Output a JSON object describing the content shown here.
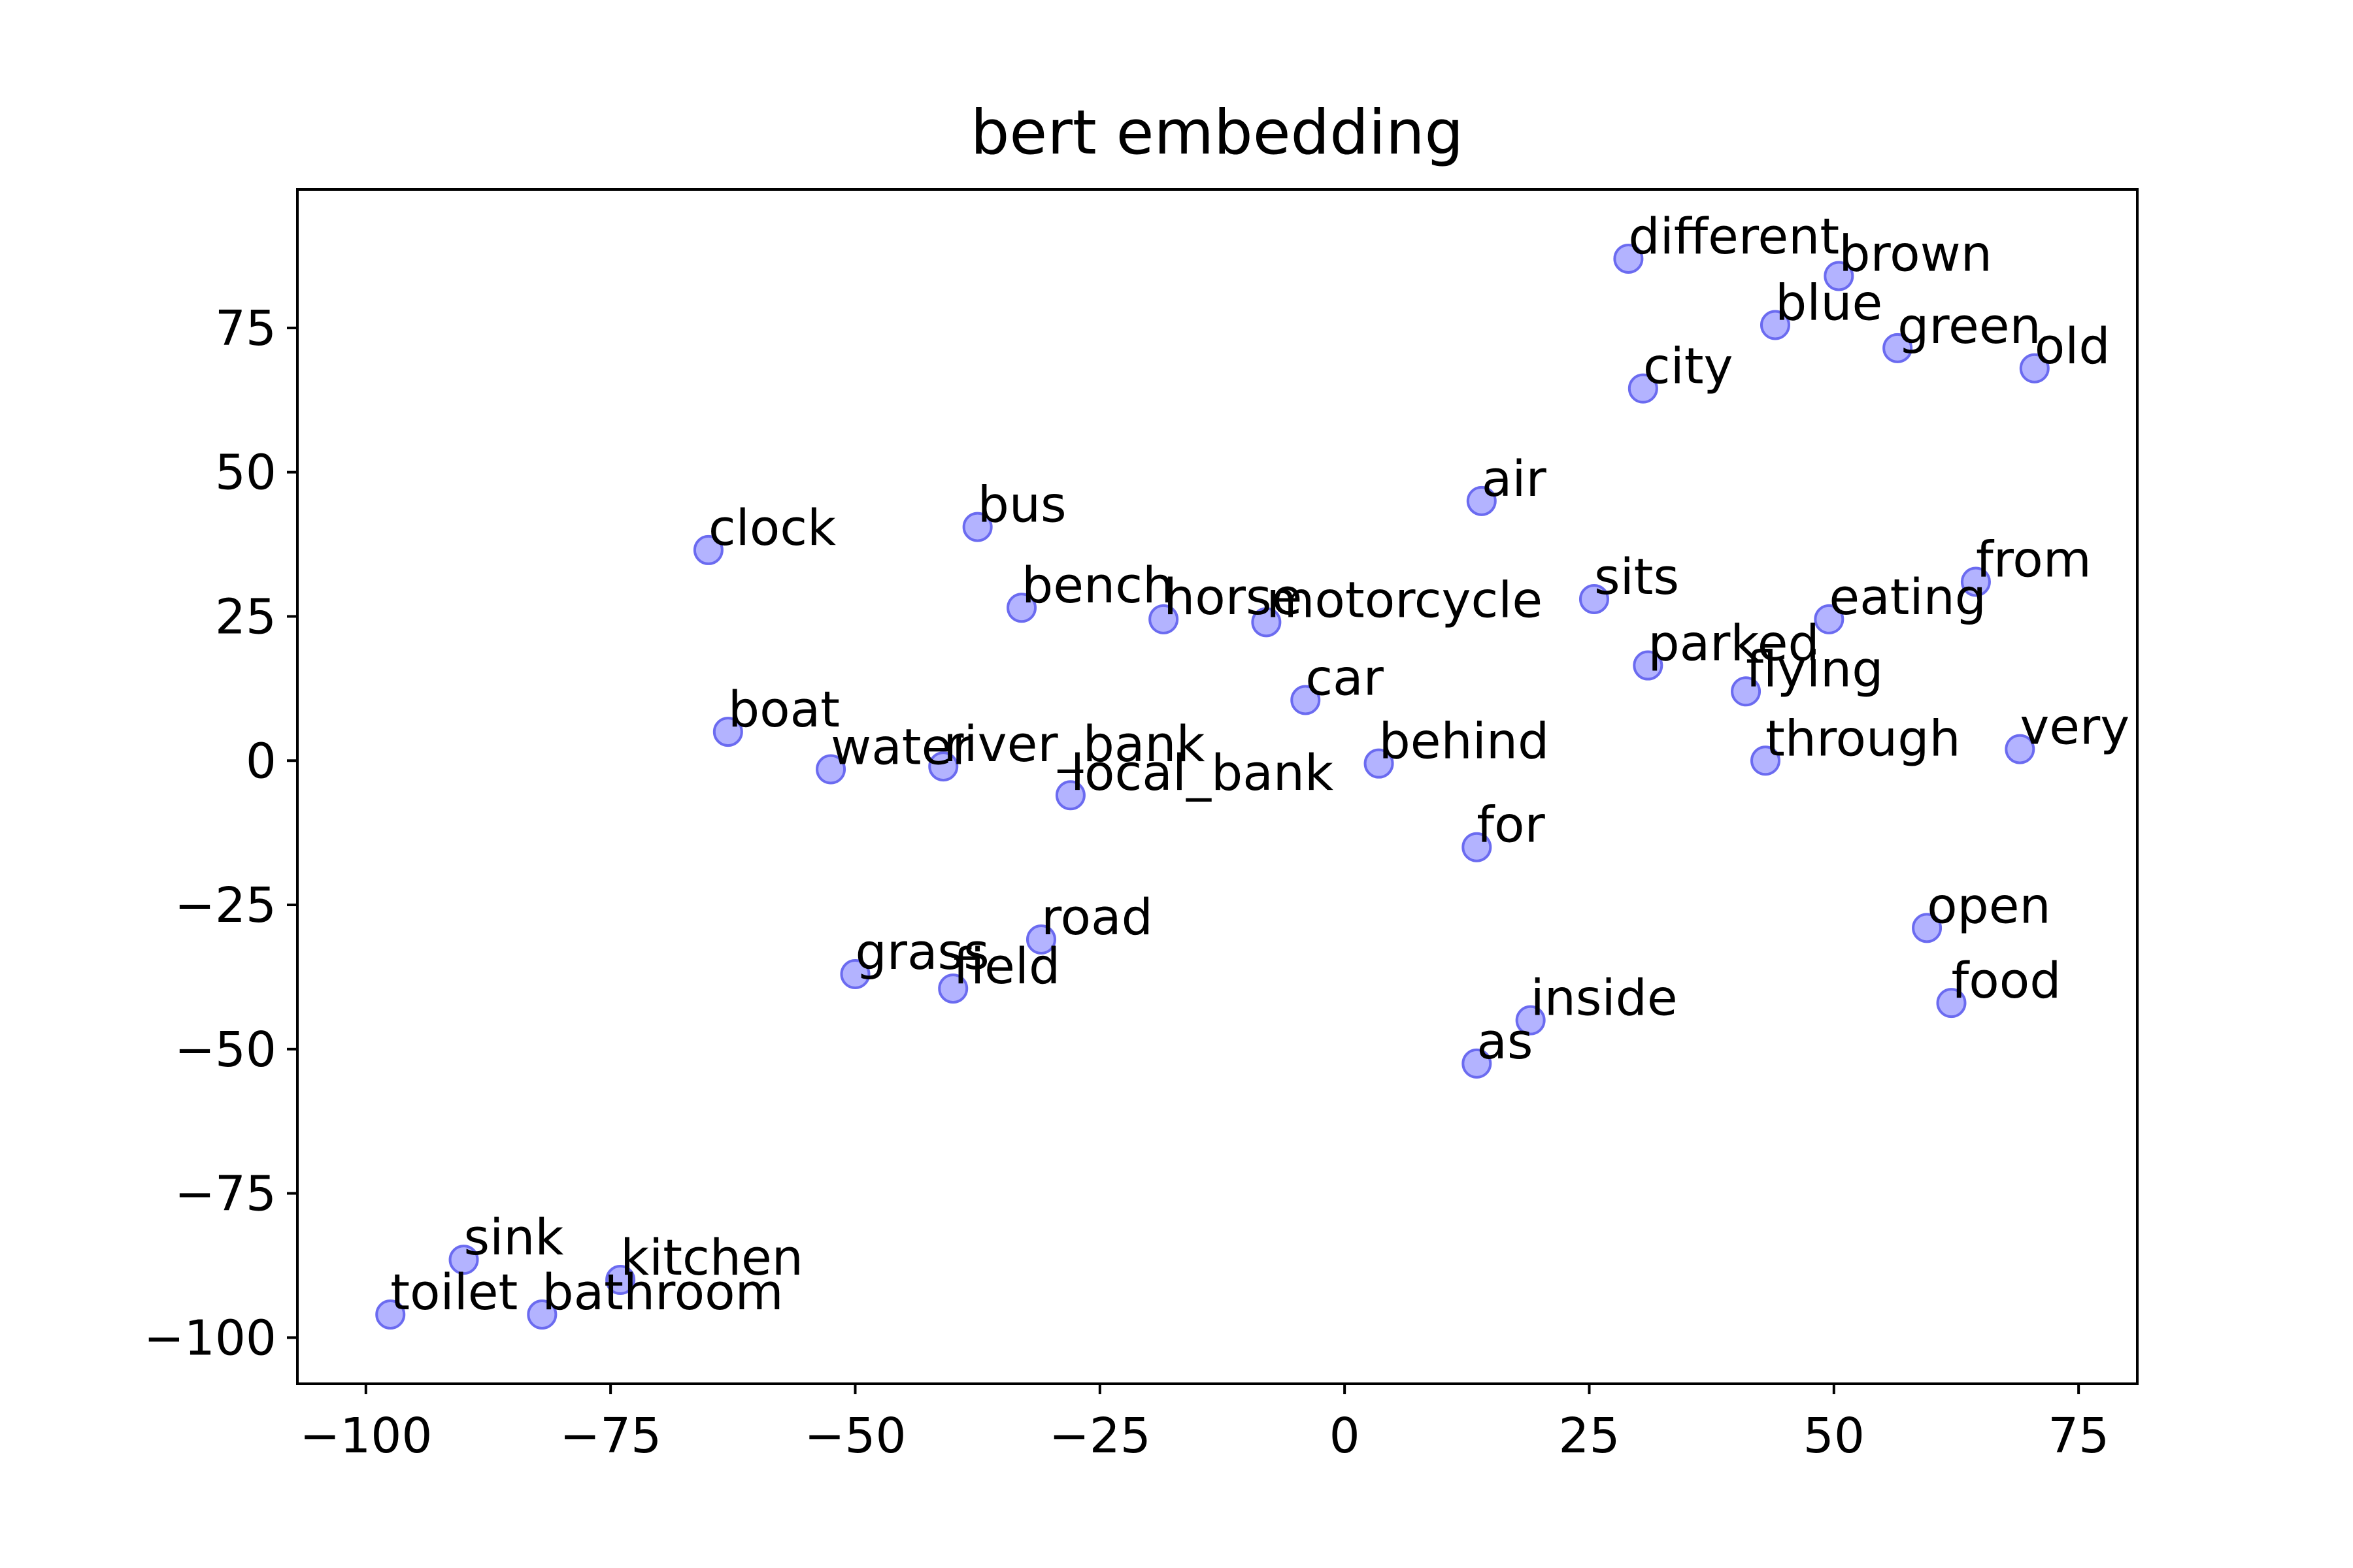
{
  "chart_data": {
    "type": "scatter",
    "title": "bert embedding",
    "xlabel": "",
    "ylabel": "",
    "xlim": [
      -107,
      81
    ],
    "ylim": [
      -108,
      99
    ],
    "xticks": [
      -100,
      -75,
      -50,
      -25,
      0,
      25,
      50,
      75
    ],
    "yticks": [
      75,
      50,
      25,
      0,
      -25,
      -50,
      -75,
      -100
    ],
    "xtick_labels": [
      "−100",
      "−75",
      "−50",
      "−25",
      "0",
      "25",
      "50",
      "75"
    ],
    "ytick_labels": [
      "75",
      "50",
      "25",
      "0",
      "−25",
      "−50",
      "−75",
      "−100"
    ],
    "grid": false,
    "marker_color": "#9999ff",
    "marker_edge_color": "#6b6bf0",
    "points": [
      {
        "label": "different",
        "x": 29,
        "y": 87
      },
      {
        "label": "brown",
        "x": 50.5,
        "y": 84
      },
      {
        "label": "blue",
        "x": 44,
        "y": 75.5
      },
      {
        "label": "green",
        "x": 56.5,
        "y": 71.5
      },
      {
        "label": "old",
        "x": 70.5,
        "y": 68
      },
      {
        "label": "city",
        "x": 30.5,
        "y": 64.5
      },
      {
        "label": "air",
        "x": 14,
        "y": 45
      },
      {
        "label": "clock",
        "x": -65,
        "y": 36.5
      },
      {
        "label": "bus",
        "x": -37.5,
        "y": 40.5
      },
      {
        "label": "bench",
        "x": -33,
        "y": 26.5
      },
      {
        "label": "horse",
        "x": -18.5,
        "y": 24.5
      },
      {
        "label": "motorcycle",
        "x": -8,
        "y": 24
      },
      {
        "label": "sits",
        "x": 25.5,
        "y": 28
      },
      {
        "label": "from",
        "x": 64.5,
        "y": 31
      },
      {
        "label": "eating",
        "x": 49.5,
        "y": 24.5
      },
      {
        "label": "parked",
        "x": 31,
        "y": 16.5
      },
      {
        "label": "flying",
        "x": 41,
        "y": 12
      },
      {
        "label": "car",
        "x": -4,
        "y": 10.5
      },
      {
        "label": "boat",
        "x": -63,
        "y": 5
      },
      {
        "label": "water",
        "x": -52.5,
        "y": -1.5
      },
      {
        "label": "river_bank",
        "x": -41,
        "y": -1
      },
      {
        "label": "local_bank",
        "x": -28,
        "y": -6
      },
      {
        "label": "behind",
        "x": 3.5,
        "y": -0.5
      },
      {
        "label": "through",
        "x": 43,
        "y": 0
      },
      {
        "label": "very",
        "x": 69,
        "y": 2
      },
      {
        "label": "for",
        "x": 13.5,
        "y": -15
      },
      {
        "label": "open",
        "x": 59.5,
        "y": -29
      },
      {
        "label": "road",
        "x": -31,
        "y": -31
      },
      {
        "label": "grass",
        "x": -50,
        "y": -37
      },
      {
        "label": "field",
        "x": -40,
        "y": -39.5
      },
      {
        "label": "food",
        "x": 62,
        "y": -42
      },
      {
        "label": "inside",
        "x": 19,
        "y": -45
      },
      {
        "label": "as",
        "x": 13.5,
        "y": -52.5
      },
      {
        "label": "sink",
        "x": -90,
        "y": -86.5
      },
      {
        "label": "kitchen",
        "x": -74,
        "y": -90
      },
      {
        "label": "toilet",
        "x": -97.5,
        "y": -96
      },
      {
        "label": "bathroom",
        "x": -82,
        "y": -96
      }
    ]
  }
}
